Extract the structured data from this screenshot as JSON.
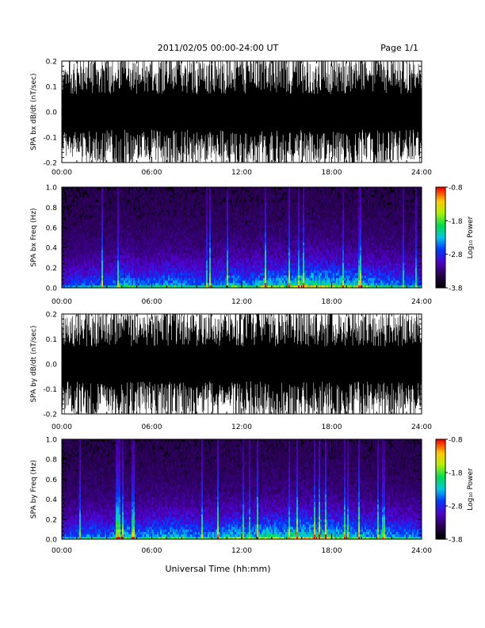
{
  "header": {
    "title": "2011/02/05  00:00-24:00 UT",
    "page": "Page 1/1"
  },
  "xlabel": "Universal Time (hh:mm)",
  "colorbar": {
    "label": "Log₁₀ Power",
    "ticks": [
      "-0.8",
      "-1.8",
      "-2.8",
      "-3.8"
    ],
    "range": [
      -3.8,
      -0.8
    ]
  },
  "chart_data": [
    {
      "type": "line",
      "ylabel": "SPA bx dB/dt (nT/sec)",
      "xlim": [
        "00:00",
        "24:00"
      ],
      "x_ticks": [
        "00:00",
        "06:00",
        "12:00",
        "18:00",
        "24:00"
      ],
      "ylim": [
        -0.2,
        0.2
      ],
      "y_ticks": [
        "0.2",
        "0.1",
        "0.0",
        "-0.1",
        "-0.2"
      ],
      "activity": [
        0.55,
        0.7,
        0.9,
        0.7,
        1.0,
        0.6,
        0.75,
        0.95,
        0.85,
        0.7,
        0.65,
        0.8,
        0.9,
        0.85,
        1.0,
        0.9,
        0.75,
        0.85,
        0.8,
        0.75,
        0.85,
        0.8,
        0.7,
        0.65
      ]
    },
    {
      "type": "heatmap",
      "ylabel": "SPA bx Freq (Hz)",
      "xlim": [
        "00:00",
        "24:00"
      ],
      "x_ticks": [
        "00:00",
        "06:00",
        "12:00",
        "18:00",
        "24:00"
      ],
      "ylim": [
        0.0,
        1.0
      ],
      "y_ticks": [
        "1.0",
        "0.8",
        "0.6",
        "0.4",
        "0.2",
        "0.0"
      ],
      "zlim": [
        -3.8,
        -0.8
      ],
      "activity": [
        0.35,
        0.45,
        0.5,
        0.45,
        0.65,
        0.5,
        0.55,
        0.6,
        0.55,
        0.5,
        0.55,
        0.65,
        0.55,
        0.7,
        0.65,
        0.75,
        0.8,
        0.75,
        0.7,
        0.65,
        0.6,
        0.55,
        0.5,
        0.45
      ]
    },
    {
      "type": "line",
      "ylabel": "SPA by dB/dt (nT/sec)",
      "xlim": [
        "00:00",
        "24:00"
      ],
      "x_ticks": [
        "00:00",
        "06:00",
        "12:00",
        "18:00",
        "24:00"
      ],
      "ylim": [
        -0.2,
        0.2
      ],
      "y_ticks": [
        "0.2",
        "0.1",
        "0.0",
        "-0.1",
        "-0.2"
      ],
      "activity": [
        0.6,
        0.75,
        0.9,
        0.75,
        1.0,
        0.65,
        0.8,
        0.95,
        0.85,
        0.75,
        0.7,
        0.8,
        0.9,
        0.9,
        1.0,
        0.9,
        0.8,
        0.85,
        0.8,
        0.8,
        0.85,
        0.8,
        0.7,
        0.65
      ]
    },
    {
      "type": "heatmap",
      "ylabel": "SPA by Freq (Hz)",
      "xlim": [
        "00:00",
        "24:00"
      ],
      "x_ticks": [
        "00:00",
        "06:00",
        "12:00",
        "18:00",
        "24:00"
      ],
      "ylim": [
        0.0,
        1.0
      ],
      "y_ticks": [
        "1.0",
        "0.8",
        "0.6",
        "0.4",
        "0.2",
        "0.0"
      ],
      "zlim": [
        -3.8,
        -0.8
      ],
      "activity": [
        0.4,
        0.5,
        0.55,
        0.5,
        0.7,
        0.55,
        0.6,
        0.65,
        0.6,
        0.55,
        0.6,
        0.7,
        0.6,
        0.75,
        0.7,
        0.8,
        0.8,
        0.75,
        0.7,
        0.65,
        0.6,
        0.6,
        0.55,
        0.5
      ]
    }
  ]
}
